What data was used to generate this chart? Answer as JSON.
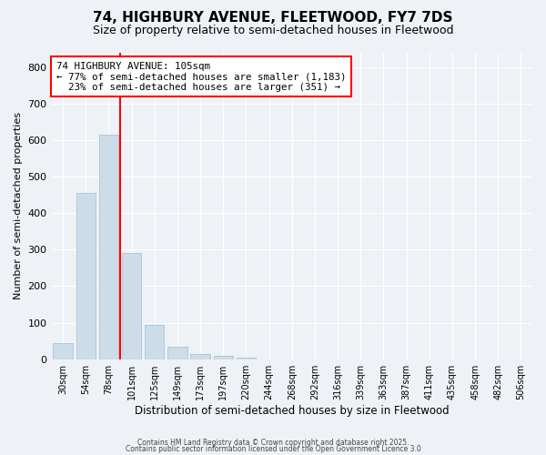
{
  "title": "74, HIGHBURY AVENUE, FLEETWOOD, FY7 7DS",
  "subtitle": "Size of property relative to semi-detached houses in Fleetwood",
  "xlabel": "Distribution of semi-detached houses by size in Fleetwood",
  "ylabel": "Number of semi-detached properties",
  "categories": [
    "30sqm",
    "54sqm",
    "78sqm",
    "101sqm",
    "125sqm",
    "149sqm",
    "173sqm",
    "197sqm",
    "220sqm",
    "244sqm",
    "268sqm",
    "292sqm",
    "316sqm",
    "339sqm",
    "363sqm",
    "387sqm",
    "411sqm",
    "435sqm",
    "458sqm",
    "482sqm",
    "506sqm"
  ],
  "values": [
    45,
    455,
    615,
    290,
    93,
    35,
    15,
    8,
    4,
    0,
    0,
    0,
    0,
    0,
    0,
    0,
    0,
    0,
    0,
    0,
    0
  ],
  "bar_color": "#ccdce8",
  "bar_edge_color": "#aac4d8",
  "property_line_bin": 3,
  "annotation_line1": "74 HIGHBURY AVENUE: 105sqm",
  "annotation_line2": "← 77% of semi-detached houses are smaller (1,183)",
  "annotation_line3": "  23% of semi-detached houses are larger (351) →",
  "ylim": [
    0,
    840
  ],
  "yticks": [
    0,
    100,
    200,
    300,
    400,
    500,
    600,
    700,
    800
  ],
  "footer_line1": "Contains HM Land Registry data © Crown copyright and database right 2025.",
  "footer_line2": "Contains public sector information licensed under the Open Government Licence 3.0",
  "background_color": "#eef2f6",
  "plot_background": "#eef2f6",
  "title_fontsize": 11,
  "subtitle_fontsize": 9
}
